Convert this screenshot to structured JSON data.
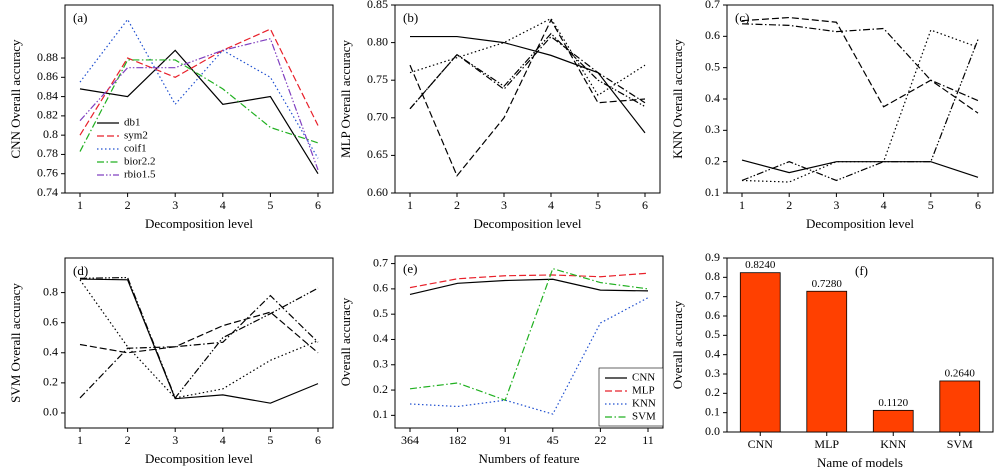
{
  "chart_data": [
    {
      "type": "line",
      "annotation": "(a)",
      "xlabel": "Decomposition level",
      "ylabel": "CNN Overall accuracy",
      "categories": [
        "1",
        "2",
        "3",
        "4",
        "5",
        "6"
      ],
      "ylim": [
        0.74,
        0.935
      ],
      "yticks": [
        0.74,
        0.76,
        0.78,
        0.8,
        0.82,
        0.84,
        0.86,
        0.88
      ],
      "legend": "lower left",
      "series": [
        {
          "name": "db1",
          "color": "#000000",
          "dash": "solid",
          "values": [
            0.848,
            0.84,
            0.888,
            0.832,
            0.84,
            0.76
          ]
        },
        {
          "name": "sym2",
          "color": "#e8202a",
          "dash": "dashed",
          "values": [
            0.8,
            0.88,
            0.86,
            0.888,
            0.91,
            0.81
          ]
        },
        {
          "name": "coif1",
          "color": "#2050d0",
          "dash": "dotted",
          "values": [
            0.855,
            0.92,
            0.832,
            0.888,
            0.86,
            0.776
          ]
        },
        {
          "name": "bior2.2",
          "color": "#20b020",
          "dash": "dashdot",
          "values": [
            0.783,
            0.878,
            0.878,
            0.848,
            0.808,
            0.792
          ]
        },
        {
          "name": "rbio1.5",
          "color": "#8040c0",
          "dash": "dashdotdot",
          "values": [
            0.815,
            0.87,
            0.87,
            0.888,
            0.9,
            0.764
          ]
        }
      ]
    },
    {
      "type": "line",
      "annotation": "(b)",
      "xlabel": "Decomposition level",
      "ylabel": "MLP Overall accuracy",
      "categories": [
        "1",
        "2",
        "3",
        "4",
        "5",
        "6"
      ],
      "ylim": [
        0.6,
        0.85
      ],
      "yticks": [
        {
          "value": 0.6,
          "label": "0.60"
        },
        0.65,
        {
          "value": 0.7,
          "label": "0.70"
        },
        0.75,
        {
          "value": 0.8,
          "label": "0.80"
        },
        0.85
      ],
      "series": [
        {
          "color": "#000000",
          "dash": "solid",
          "values": [
            0.808,
            0.808,
            0.8,
            0.783,
            0.76,
            0.68
          ]
        },
        {
          "color": "#000000",
          "dash": "dashed",
          "values": [
            0.77,
            0.623,
            0.7,
            0.83,
            0.72,
            0.725
          ]
        },
        {
          "color": "#000000",
          "dash": "dotted",
          "values": [
            0.76,
            0.78,
            0.8,
            0.832,
            0.73,
            0.77
          ]
        },
        {
          "color": "#000000",
          "dash": "dashdot",
          "values": [
            0.712,
            0.784,
            0.738,
            0.808,
            0.76,
            0.72
          ]
        },
        {
          "color": "#000000",
          "dash": "dashdotdot",
          "values": [
            0.712,
            0.784,
            0.742,
            0.812,
            0.75,
            0.715
          ]
        }
      ]
    },
    {
      "type": "line",
      "annotation": "(c)",
      "xlabel": "Decomposition level",
      "ylabel": "KNN Overall accuracy",
      "categories": [
        "1",
        "2",
        "3",
        "4",
        "5",
        "6"
      ],
      "ylim": [
        0.1,
        0.7
      ],
      "yticks": [
        0.1,
        0.2,
        0.3,
        0.4,
        0.5,
        0.6,
        0.7
      ],
      "series": [
        {
          "color": "#000000",
          "dash": "solid",
          "values": [
            0.205,
            0.165,
            0.2,
            0.2,
            0.2,
            0.15
          ]
        },
        {
          "color": "#000000",
          "dash": "dashed",
          "values": [
            0.65,
            0.66,
            0.645,
            0.375,
            0.46,
            0.355
          ]
        },
        {
          "color": "#000000",
          "dash": "dotted",
          "values": [
            0.14,
            0.135,
            0.2,
            0.2,
            0.62,
            0.565
          ]
        },
        {
          "color": "#000000",
          "dash": "dashdot",
          "values": [
            0.64,
            0.635,
            0.615,
            0.625,
            0.46,
            0.395
          ]
        },
        {
          "color": "#000000",
          "dash": "dashdotdot",
          "values": [
            0.14,
            0.2,
            0.14,
            0.2,
            0.2,
            0.59
          ]
        }
      ]
    },
    {
      "type": "line",
      "annotation": "(d)",
      "xlabel": "Decomposition level",
      "ylabel": "SVM Overall accuracy",
      "categories": [
        "1",
        "2",
        "3",
        "4",
        "5",
        "6"
      ],
      "ylim": [
        -0.1,
        1.03
      ],
      "yticks": [
        {
          "value": 0,
          "label": "0.0"
        },
        0.2,
        0.4,
        0.6,
        0.8
      ],
      "series": [
        {
          "color": "#000000",
          "dash": "solid",
          "values": [
            0.89,
            0.885,
            0.095,
            0.12,
            0.065,
            0.195
          ]
        },
        {
          "color": "#000000",
          "dash": "dashed",
          "values": [
            0.455,
            0.4,
            0.44,
            0.58,
            0.67,
            0.4
          ]
        },
        {
          "color": "#000000",
          "dash": "dotted",
          "values": [
            0.885,
            0.44,
            0.1,
            0.16,
            0.35,
            0.48
          ]
        },
        {
          "color": "#000000",
          "dash": "dashdot",
          "values": [
            0.1,
            0.43,
            0.44,
            0.47,
            0.78,
            0.47
          ]
        },
        {
          "color": "#000000",
          "dash": "dashdotdot",
          "values": [
            0.895,
            0.9,
            0.1,
            0.5,
            0.66,
            0.83
          ]
        }
      ]
    },
    {
      "type": "line",
      "annotation": "(e)",
      "xlabel": "Numbers of feature",
      "ylabel": "Overall accuracy",
      "categories": [
        "364",
        "182",
        "91",
        "45",
        "22",
        "11"
      ],
      "ylim": [
        0.05,
        0.73
      ],
      "yticks": [
        0.1,
        0.2,
        0.3,
        0.4,
        0.5,
        0.6,
        0.7
      ],
      "legend": "lower right",
      "series": [
        {
          "name": "CNN",
          "color": "#000000",
          "dash": "solid",
          "values": [
            0.578,
            0.622,
            0.633,
            0.638,
            0.595,
            0.592
          ]
        },
        {
          "name": "MLP",
          "color": "#e8202a",
          "dash": "dashed",
          "values": [
            0.605,
            0.64,
            0.652,
            0.655,
            0.648,
            0.662
          ]
        },
        {
          "name": "KNN",
          "color": "#2050d0",
          "dash": "dotted",
          "values": [
            0.145,
            0.135,
            0.16,
            0.105,
            0.465,
            0.565
          ]
        },
        {
          "name": "SVM",
          "color": "#20b020",
          "dash": "dashdot",
          "values": [
            0.205,
            0.228,
            0.16,
            0.68,
            0.625,
            0.6
          ]
        }
      ]
    },
    {
      "type": "bar",
      "annotation": "(f)",
      "xlabel": "Name of models",
      "ylabel": "Overall accuracy",
      "categories": [
        "CNN",
        "MLP",
        "KNN",
        "SVM"
      ],
      "values": [
        0.824,
        0.728,
        0.112,
        0.264
      ],
      "value_labels": [
        "0.8240",
        "0.7280",
        "0.1120",
        "0.2640"
      ],
      "color": "#ff4000",
      "ylim": [
        0,
        0.9
      ],
      "yticks": [
        {
          "value": 0,
          "label": "0.0"
        },
        0.1,
        0.2,
        0.3,
        0.4,
        0.5,
        0.6,
        0.7,
        0.8,
        0.9
      ]
    }
  ]
}
